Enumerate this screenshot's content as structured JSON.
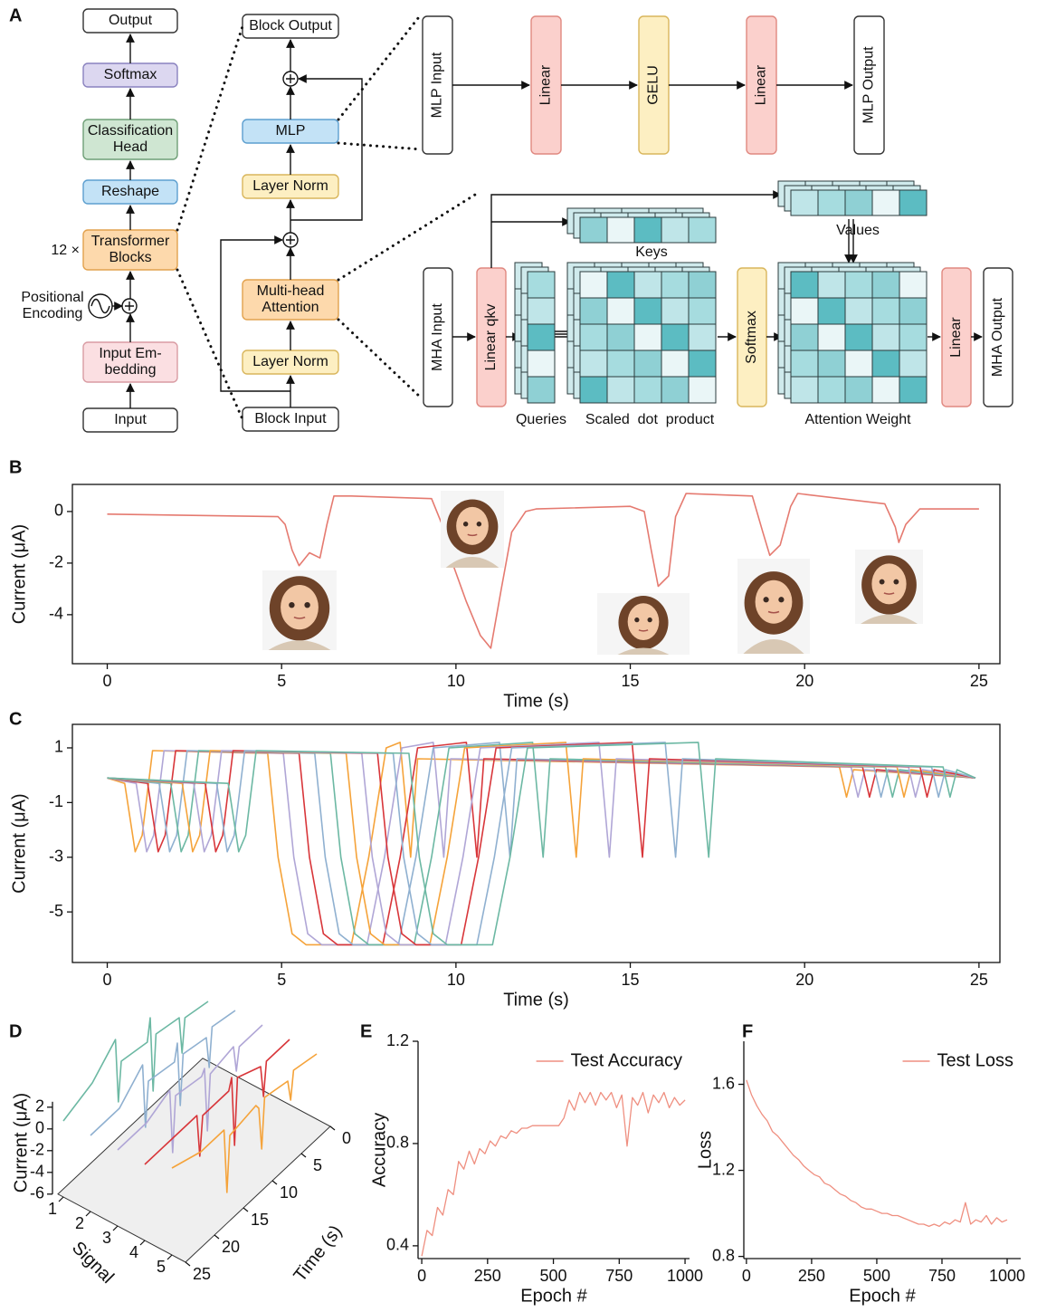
{
  "panel_labels": [
    "A",
    "B",
    "C",
    "D",
    "E",
    "F"
  ],
  "panel_a": {
    "stack": {
      "output": "Output",
      "softmax": "Softmax",
      "head": [
        "Classification",
        "Head"
      ],
      "reshape": "Reshape",
      "repeat": "12 ×",
      "blocks": [
        "Transformer",
        "Blocks"
      ],
      "positional": [
        "Positional",
        "Encoding"
      ],
      "embedding": [
        "Input Em-",
        "bedding"
      ],
      "input": "Input"
    },
    "block": {
      "output": "Block Output",
      "mlp": "MLP",
      "norm2": "Layer Norm",
      "mha": [
        "Multi-head",
        "Attention"
      ],
      "norm1": "Layer Norm",
      "input": "Block Input"
    },
    "mlp": [
      "MLP Input",
      "Linear",
      "GELU",
      "Linear",
      "MLP Output"
    ],
    "mha": {
      "input": "MHA Input",
      "qkv": "Linear qkv",
      "keys": "Keys",
      "values": "Values",
      "queries": "Queries",
      "scores": "Scaled  dot  product",
      "softmax": "Softmax",
      "weights": "Attention Weight",
      "linear": "Linear",
      "output": "MHA Output"
    }
  },
  "chart_data": [
    {
      "type": "line",
      "xlabel": "Time (s)",
      "ylabel": "Current (μA)",
      "xlim": [
        -1,
        25.6
      ],
      "ylim": [
        -5.9,
        1.05
      ],
      "xticks": [
        0,
        5,
        10,
        15,
        20,
        25
      ],
      "yticks": [
        -4,
        -2,
        0
      ],
      "series": [
        {
          "color": "#e57a70",
          "x": [
            0,
            4.9,
            5.1,
            5.3,
            5.5,
            5.8,
            6.1,
            6.3,
            6.5,
            7,
            9.3,
            9.6,
            9.9,
            10.3,
            10.7,
            11.0,
            11.3,
            11.6,
            12,
            12.3,
            15.0,
            15.4,
            15.6,
            15.8,
            16.1,
            16.3,
            16.6,
            18.5,
            18.8,
            19.0,
            19.3,
            19.6,
            19.8,
            22.3,
            22.6,
            22.7,
            22.9,
            23.3,
            25
          ],
          "values": [
            -0.1,
            -0.2,
            -0.5,
            -1.5,
            -2.1,
            -1.6,
            -1.8,
            -0.5,
            0.6,
            0.6,
            0.5,
            -0.5,
            -2.0,
            -3.5,
            -4.8,
            -5.3,
            -3.0,
            -0.8,
            0,
            0.1,
            0.2,
            0.0,
            -1.5,
            -2.9,
            -2.5,
            -0.2,
            0.7,
            0.6,
            -0.8,
            -1.7,
            -1.3,
            0.2,
            0.7,
            0.3,
            -0.6,
            -1.2,
            -0.5,
            0.1,
            0.1
          ]
        }
      ]
    },
    {
      "type": "line",
      "xlabel": "Time (s)",
      "ylabel": "Current (μA)",
      "xlim": [
        -1,
        25.6
      ],
      "ylim": [
        -6.85,
        1.86
      ],
      "xticks": [
        0,
        5,
        10,
        15,
        20,
        25
      ],
      "yticks": [
        -5,
        -3,
        -1,
        1
      ],
      "series": [
        {
          "color": "#f5a33a",
          "x": [
            0,
            0.5,
            0.8,
            1.0,
            1.3,
            4.6,
            4.9,
            5.3,
            5.7,
            7.0,
            7.5,
            8.0,
            8.4,
            8.7,
            8.9,
            21.0,
            21.2,
            21.4,
            24.9
          ],
          "values": [
            -0.1,
            -0.3,
            -2.8,
            -2.2,
            0.9,
            0.8,
            -3,
            -5.8,
            -6.2,
            -6.2,
            -3,
            1.0,
            1.2,
            -3,
            0.6,
            0.3,
            -0.8,
            0.2,
            -0.1
          ]
        },
        {
          "color": "#b0a6d6",
          "x": [
            0,
            0.83,
            1.13,
            1.33,
            1.63,
            5.05,
            5.35,
            5.75,
            6.15,
            7.45,
            7.95,
            8.45,
            9.35,
            9.65,
            9.85,
            21.33,
            21.53,
            21.73,
            24.9
          ],
          "values": [
            -0.1,
            -0.3,
            -2.8,
            -2.2,
            0.9,
            0.8,
            -3,
            -5.8,
            -6.2,
            -6.2,
            -3,
            1.0,
            1.2,
            -3,
            0.6,
            0.3,
            -0.8,
            0.2,
            -0.1
          ]
        },
        {
          "color": "#d8363a",
          "x": [
            0,
            1.16,
            1.46,
            1.66,
            1.96,
            5.5,
            5.8,
            6.2,
            6.6,
            7.9,
            8.4,
            8.9,
            10.3,
            10.6,
            10.8,
            21.66,
            21.86,
            22.06,
            24.9
          ],
          "values": [
            -0.1,
            -0.3,
            -2.8,
            -2.2,
            0.9,
            0.8,
            -3,
            -5.8,
            -6.2,
            -6.2,
            -3,
            1.0,
            1.2,
            -3,
            0.6,
            0.3,
            -0.8,
            0.2,
            -0.1
          ]
        },
        {
          "color": "#8fb0d0",
          "x": [
            0,
            1.49,
            1.79,
            1.99,
            2.29,
            5.95,
            6.25,
            6.65,
            7.05,
            8.35,
            8.85,
            9.35,
            11.25,
            11.55,
            11.75,
            21.99,
            22.19,
            22.39,
            24.9
          ],
          "values": [
            -0.1,
            -0.3,
            -2.8,
            -2.2,
            0.9,
            0.8,
            -3,
            -5.8,
            -6.2,
            -6.2,
            -3,
            1.0,
            1.2,
            -3,
            0.6,
            0.3,
            -0.8,
            0.2,
            -0.1
          ]
        },
        {
          "color": "#6cb8a3",
          "x": [
            0,
            1.82,
            2.12,
            2.32,
            2.62,
            6.4,
            6.7,
            7.1,
            7.5,
            8.8,
            9.3,
            9.8,
            12.2,
            12.5,
            12.7,
            22.32,
            22.52,
            22.72,
            24.9
          ],
          "values": [
            -0.1,
            -0.3,
            -2.8,
            -2.2,
            0.9,
            0.8,
            -3,
            -5.8,
            -6.2,
            -6.2,
            -3,
            1.0,
            1.2,
            -3,
            0.6,
            0.3,
            -0.8,
            0.2,
            -0.1
          ]
        },
        {
          "color": "#f5a33a",
          "x": [
            0,
            2.15,
            2.45,
            2.65,
            2.95,
            6.85,
            7.15,
            7.55,
            7.95,
            9.25,
            9.75,
            10.25,
            13.15,
            13.45,
            13.65,
            22.65,
            22.85,
            23.05,
            24.9
          ],
          "values": [
            -0.1,
            -0.3,
            -2.8,
            -2.2,
            0.9,
            0.8,
            -3,
            -5.8,
            -6.2,
            -6.2,
            -3,
            1.0,
            1.2,
            -3,
            0.6,
            0.3,
            -0.8,
            0.2,
            -0.1
          ]
        },
        {
          "color": "#b0a6d6",
          "x": [
            0,
            2.48,
            2.78,
            2.98,
            3.28,
            7.3,
            7.6,
            8.0,
            8.4,
            9.7,
            10.2,
            10.7,
            14.1,
            14.4,
            14.6,
            22.98,
            23.18,
            23.38,
            24.9
          ],
          "values": [
            -0.1,
            -0.3,
            -2.8,
            -2.2,
            0.9,
            0.8,
            -3,
            -5.8,
            -6.2,
            -6.2,
            -3,
            1.0,
            1.2,
            -3,
            0.6,
            0.3,
            -0.8,
            0.2,
            -0.1
          ]
        },
        {
          "color": "#d8363a",
          "x": [
            0,
            2.81,
            3.11,
            3.31,
            3.61,
            7.75,
            8.05,
            8.45,
            8.85,
            10.15,
            10.65,
            11.15,
            15.05,
            15.35,
            15.55,
            23.31,
            23.51,
            23.71,
            24.9
          ],
          "values": [
            -0.1,
            -0.3,
            -2.8,
            -2.2,
            0.9,
            0.8,
            -3,
            -5.8,
            -6.2,
            -6.2,
            -3,
            1.0,
            1.2,
            -3,
            0.6,
            0.3,
            -0.8,
            0.2,
            -0.1
          ]
        },
        {
          "color": "#8fb0d0",
          "x": [
            0,
            3.14,
            3.44,
            3.64,
            3.94,
            8.2,
            8.5,
            8.9,
            9.3,
            10.6,
            11.1,
            11.6,
            16.0,
            16.3,
            16.5,
            23.64,
            23.84,
            24.04,
            24.9
          ],
          "values": [
            -0.1,
            -0.3,
            -2.8,
            -2.2,
            0.9,
            0.8,
            -3,
            -5.8,
            -6.2,
            -6.2,
            -3,
            1.0,
            1.2,
            -3,
            0.6,
            0.3,
            -0.8,
            0.2,
            -0.1
          ]
        },
        {
          "color": "#6cb8a3",
          "x": [
            0,
            3.47,
            3.77,
            3.97,
            4.27,
            8.65,
            8.95,
            9.35,
            9.75,
            11.05,
            11.55,
            12.05,
            16.95,
            17.25,
            17.45,
            23.97,
            24.17,
            24.37,
            24.9
          ],
          "values": [
            -0.1,
            -0.3,
            -2.8,
            -2.2,
            0.9,
            0.8,
            -3,
            -5.8,
            -6.2,
            -6.2,
            -3,
            1.0,
            1.2,
            -3,
            0.6,
            0.3,
            -0.8,
            0.2,
            -0.1
          ]
        }
      ]
    },
    {
      "type": "line3d",
      "xlabel": "Time (s)",
      "ylabel": "Signal",
      "zlabel": "Current (μA)",
      "xlim": [
        0,
        25
      ],
      "ylim": [
        0.8,
        5.5
      ],
      "zlim": [
        -6,
        2.5
      ],
      "xticks": [
        0,
        5,
        10,
        15,
        20,
        25
      ],
      "yticks": [
        1,
        2,
        3,
        4,
        5
      ],
      "zticks": [
        2,
        0,
        -2,
        -4,
        -6
      ],
      "series": [
        {
          "color": "#6cb8a3",
          "signal": 1,
          "x": [
            0,
            4,
            4.5,
            5,
            9,
            9.5,
            10,
            10.5,
            15,
            15.5,
            16,
            20,
            25
          ],
          "values": [
            -0.5,
            0,
            -3,
            0.5,
            1,
            -4,
            3,
            1,
            1.5,
            -2,
            4,
            2,
            1
          ]
        },
        {
          "color": "#8fb0d0",
          "signal": 2,
          "x": [
            0,
            4,
            4.5,
            5,
            9,
            9.5,
            10,
            10.5,
            15,
            15.5,
            16,
            20,
            25
          ],
          "values": [
            0,
            0.5,
            -3,
            0,
            0.5,
            -4,
            2,
            0.5,
            1,
            -3,
            3,
            1,
            1
          ]
        },
        {
          "color": "#b0a6d6",
          "signal": 3,
          "x": [
            0,
            4,
            4.5,
            5,
            9,
            9.5,
            10,
            10.5,
            15,
            15.5,
            16,
            20,
            25
          ],
          "values": [
            0,
            0,
            -2,
            0.5,
            0,
            -5,
            1,
            0.5,
            1,
            -4,
            2,
            1,
            1
          ]
        },
        {
          "color": "#d8363a",
          "signal": 4,
          "x": [
            0,
            4,
            4.5,
            5,
            9,
            9.5,
            10,
            10.5,
            15,
            15.5,
            16,
            20,
            25
          ],
          "values": [
            0,
            0,
            -3,
            0,
            1,
            -5,
            1.5,
            0.5,
            0.5,
            -3,
            1,
            1,
            1
          ]
        },
        {
          "color": "#f5a33a",
          "signal": 5,
          "x": [
            0,
            4,
            4.5,
            5,
            9,
            9.5,
            10,
            10.5,
            15,
            15.5,
            16,
            20,
            25
          ],
          "values": [
            0,
            0.5,
            -2,
            0,
            0.5,
            -4,
            0,
            0.5,
            0,
            -5,
            1,
            1,
            2
          ]
        }
      ]
    },
    {
      "type": "line",
      "xlabel": "Epoch #",
      "ylabel": "Accuracy",
      "xlim": [
        -14,
        1017
      ],
      "ylim": [
        0.35,
        1.2
      ],
      "xticks": [
        0,
        250,
        500,
        750,
        1000
      ],
      "yticks": [
        0.4,
        0.8,
        1.2
      ],
      "legend": "upper right",
      "series": [
        {
          "name": "Test Accuracy",
          "color": "#ef8f80",
          "x": [
            0,
            20,
            40,
            60,
            80,
            100,
            120,
            140,
            160,
            180,
            200,
            220,
            240,
            260,
            280,
            300,
            320,
            340,
            360,
            380,
            400,
            420,
            440,
            460,
            480,
            500,
            520,
            540,
            560,
            580,
            600,
            620,
            640,
            660,
            680,
            700,
            720,
            740,
            760,
            780,
            800,
            820,
            840,
            860,
            880,
            900,
            920,
            940,
            960,
            980,
            1000
          ],
          "values": [
            0.36,
            0.46,
            0.44,
            0.55,
            0.52,
            0.62,
            0.6,
            0.73,
            0.7,
            0.77,
            0.72,
            0.78,
            0.76,
            0.81,
            0.79,
            0.83,
            0.82,
            0.85,
            0.84,
            0.86,
            0.86,
            0.87,
            0.87,
            0.87,
            0.87,
            0.87,
            0.87,
            0.9,
            0.97,
            0.93,
            1.0,
            0.96,
            1.0,
            0.95,
            1.0,
            0.97,
            1.0,
            0.94,
            0.99,
            0.79,
            0.98,
            0.95,
            1.0,
            0.92,
            0.99,
            0.96,
            1.0,
            0.94,
            0.98,
            0.95,
            0.97
          ]
        }
      ]
    },
    {
      "type": "line",
      "xlabel": "Epoch #",
      "ylabel": "Loss",
      "xlim": [
        -10,
        1052
      ],
      "ylim": [
        0.79,
        1.8
      ],
      "xticks": [
        0,
        250,
        500,
        750,
        1000
      ],
      "yticks": [
        0.8,
        1.2,
        1.6
      ],
      "legend": "upper right",
      "series": [
        {
          "name": "Test Loss",
          "color": "#ef8f80",
          "x": [
            0,
            20,
            40,
            60,
            80,
            100,
            120,
            140,
            160,
            180,
            200,
            220,
            240,
            260,
            280,
            300,
            320,
            340,
            360,
            380,
            400,
            420,
            440,
            460,
            480,
            500,
            520,
            540,
            560,
            580,
            600,
            620,
            640,
            660,
            680,
            700,
            720,
            740,
            760,
            780,
            800,
            820,
            840,
            860,
            880,
            900,
            920,
            940,
            960,
            980,
            1000
          ],
          "values": [
            1.62,
            1.55,
            1.5,
            1.46,
            1.43,
            1.38,
            1.36,
            1.33,
            1.3,
            1.27,
            1.25,
            1.22,
            1.2,
            1.18,
            1.17,
            1.14,
            1.13,
            1.11,
            1.09,
            1.08,
            1.06,
            1.05,
            1.03,
            1.02,
            1.02,
            1.01,
            1.0,
            1.0,
            0.99,
            0.99,
            0.98,
            0.97,
            0.96,
            0.95,
            0.95,
            0.94,
            0.95,
            0.94,
            0.96,
            0.95,
            0.97,
            0.96,
            1.05,
            0.95,
            0.97,
            0.96,
            0.99,
            0.95,
            0.98,
            0.96,
            0.97
          ]
        }
      ]
    }
  ]
}
